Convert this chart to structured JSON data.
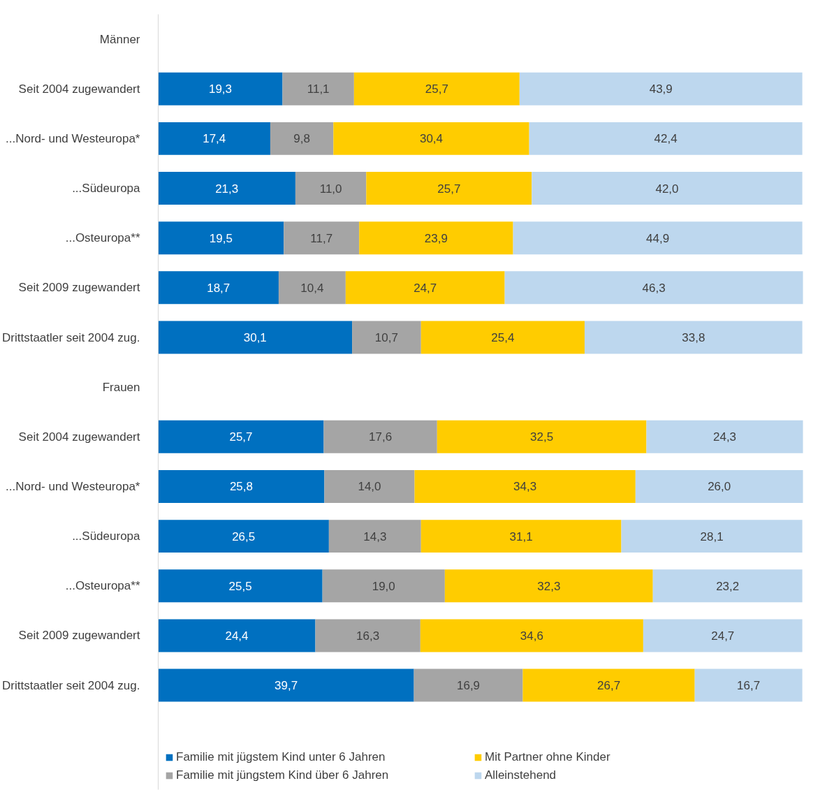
{
  "chart_data": {
    "type": "bar",
    "orientation": "horizontal",
    "stacked": true,
    "grid": false,
    "legend": "bottom",
    "categories": [
      "Männer",
      "Seit 2004 zugewandert",
      "...Nord- und Westeuropa*",
      "...Südeuropa",
      "...Osteuropa**",
      "Seit 2009 zugewandert",
      "Drittstaatler seit 2004 zug.",
      "Frauen",
      "Seit 2004 zugewandert",
      "...Nord- und Westeuropa*",
      "...Südeuropa",
      "...Osteuropa**",
      "Seit 2009 zugewandert",
      "Drittstaatler seit 2004 zug."
    ],
    "series": [
      {
        "name": "Familie mit jügstem Kind unter 6 Jahren",
        "color": "#0070c0",
        "values": [
          null,
          19.3,
          17.4,
          21.3,
          19.5,
          18.7,
          30.1,
          null,
          25.7,
          25.8,
          26.5,
          25.5,
          24.4,
          39.7
        ],
        "value_labels": [
          null,
          "19,3",
          "17,4",
          "21,3",
          "19,5",
          "18,7",
          "30,1",
          null,
          "25,7",
          "25,8",
          "26,5",
          "25,5",
          "24,4",
          "39,7"
        ]
      },
      {
        "name": "Familie mit jüngstem Kind über 6 Jahren",
        "color": "#a5a5a5",
        "values": [
          null,
          11.1,
          9.8,
          11.0,
          11.7,
          10.4,
          10.7,
          null,
          17.6,
          14.0,
          14.3,
          19.0,
          16.3,
          16.9
        ],
        "value_labels": [
          null,
          "11,1",
          "9,8",
          "11,0",
          "11,7",
          "10,4",
          "10,7",
          null,
          "17,6",
          "14,0",
          "14,3",
          "19,0",
          "16,3",
          "16,9"
        ]
      },
      {
        "name": "Mit Partner ohne Kinder",
        "color": "#ffcc00",
        "values": [
          null,
          25.7,
          30.4,
          25.7,
          23.9,
          24.7,
          25.4,
          null,
          32.5,
          34.3,
          31.1,
          32.3,
          34.6,
          26.7
        ],
        "value_labels": [
          null,
          "25,7",
          "30,4",
          "25,7",
          "23,9",
          "24,7",
          "25,4",
          null,
          "32,5",
          "34,3",
          "31,1",
          "32,3",
          "34,6",
          "26,7"
        ]
      },
      {
        "name": "Alleinstehend",
        "color": "#bdd7ee",
        "values": [
          null,
          43.9,
          42.4,
          42.0,
          44.9,
          46.3,
          33.8,
          null,
          24.3,
          26.0,
          28.1,
          23.2,
          24.7,
          16.7
        ],
        "value_labels": [
          null,
          "43,9",
          "42,4",
          "42,0",
          "44,9",
          "46,3",
          "33,8",
          null,
          "24,3",
          "26,0",
          "28,1",
          "23,2",
          "24,7",
          "16,7"
        ]
      }
    ]
  }
}
